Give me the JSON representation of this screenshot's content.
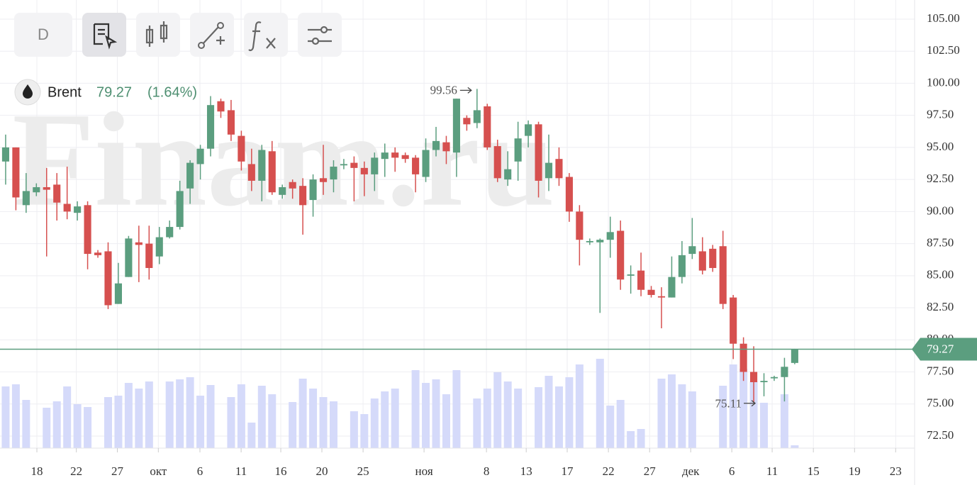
{
  "chart_data": {
    "type": "candlestick",
    "toolbar": {
      "timeframe": "D"
    },
    "instrument": "Brent",
    "last_price": 79.27,
    "change": "(1.64%)",
    "watermark": "Finam.ru",
    "max_label": 99.56,
    "min_label": 75.11,
    "up_color": "#5b9e7f",
    "down_color": "#d6504f",
    "volume_color": "#d5dafa",
    "open": [
      93.9,
      95.0,
      90.5,
      91.5,
      91.9,
      92.1,
      90.6,
      89.9,
      90.5,
      86.8,
      86.9,
      82.8,
      84.9,
      87.6,
      87.5,
      86.5,
      88.0,
      88.8,
      91.8,
      93.7,
      94.9,
      98.6,
      97.9,
      95.9,
      93.7,
      92.4,
      94.7,
      91.3,
      92.3,
      92.0,
      90.9,
      92.6,
      92.5,
      93.6,
      93.8,
      93.4,
      92.9,
      94.1,
      94.6,
      94.4,
      94.2,
      92.7,
      94.8,
      95.4,
      94.6,
      97.3,
      96.9,
      98.2,
      95.1,
      92.5,
      93.9,
      95.9,
      96.8,
      92.6,
      94.1,
      92.7,
      90.0,
      87.6,
      87.6,
      87.8,
      88.5,
      85.0,
      85.4,
      83.9,
      83.4,
      83.3,
      84.9,
      86.7,
      86.9,
      87.1,
      87.3,
      83.3,
      79.7,
      77.5,
      76.7,
      77.0,
      77.1,
      78.2
    ],
    "high": [
      96.0,
      95.0,
      93.0,
      92.2,
      93.4,
      93.0,
      93.5,
      90.8,
      90.8,
      87.0,
      87.6,
      86.0,
      88.1,
      88.9,
      88.9,
      88.8,
      89.3,
      92.4,
      94.0,
      95.2,
      99.0,
      98.8,
      98.7,
      96.3,
      94.9,
      95.2,
      95.5,
      92.1,
      92.5,
      92.6,
      92.9,
      95.2,
      94.0,
      94.1,
      94.3,
      93.9,
      94.6,
      95.3,
      95.0,
      94.6,
      94.4,
      95.7,
      96.6,
      95.9,
      98.8,
      97.5,
      99.56,
      98.4,
      95.6,
      94.7,
      97.0,
      97.1,
      97.0,
      96.0,
      95.0,
      93.0,
      90.5,
      87.9,
      87.9,
      89.6,
      89.3,
      85.8,
      86.8,
      84.2,
      84.1,
      86.5,
      87.7,
      89.5,
      88.0,
      87.4,
      88.5,
      83.5,
      80.2,
      79.5,
      77.4,
      77.2,
      78.6,
      79.3
    ],
    "low": [
      92.1,
      90.1,
      89.9,
      91.2,
      86.5,
      89.3,
      89.4,
      89.3,
      85.5,
      86.4,
      82.4,
      82.8,
      84.9,
      84.5,
      84.7,
      85.9,
      87.9,
      88.6,
      90.6,
      92.5,
      94.3,
      97.3,
      95.5,
      93.2,
      91.6,
      90.8,
      91.3,
      91.0,
      91.0,
      88.2,
      89.6,
      91.3,
      91.5,
      93.3,
      90.8,
      91.2,
      91.6,
      92.7,
      93.1,
      93.8,
      91.5,
      92.3,
      94.3,
      93.7,
      92.7,
      96.3,
      96.5,
      94.8,
      92.3,
      92.0,
      92.4,
      95.0,
      91.1,
      91.6,
      92.0,
      89.2,
      85.8,
      87.4,
      82.1,
      86.4,
      83.9,
      83.6,
      83.4,
      83.3,
      80.9,
      83.3,
      84.4,
      86.3,
      85.1,
      85.3,
      82.4,
      78.5,
      76.8,
      75.11,
      75.6,
      76.8,
      75.2,
      78.1
    ],
    "close": [
      95.0,
      91.1,
      91.6,
      91.9,
      91.7,
      90.7,
      90.0,
      90.4,
      86.7,
      86.6,
      82.7,
      84.4,
      87.9,
      87.4,
      85.6,
      88.0,
      88.8,
      91.6,
      93.8,
      94.9,
      98.3,
      97.8,
      96.0,
      93.9,
      92.4,
      94.8,
      91.5,
      91.9,
      91.8,
      90.5,
      92.5,
      92.3,
      93.5,
      93.7,
      93.4,
      92.9,
      94.2,
      94.6,
      94.2,
      94.1,
      92.9,
      94.8,
      95.5,
      94.7,
      98.8,
      96.8,
      97.9,
      95.0,
      92.6,
      93.3,
      95.7,
      96.8,
      92.4,
      93.8,
      92.6,
      90.0,
      87.8,
      87.7,
      87.8,
      88.4,
      84.7,
      85.1,
      83.9,
      83.5,
      83.3,
      84.9,
      86.6,
      87.3,
      85.4,
      85.6,
      82.8,
      79.7,
      77.5,
      76.7,
      76.8,
      77.1,
      77.9,
      79.27
    ],
    "volume": [
      87,
      90,
      68,
      0,
      57,
      66,
      87,
      62,
      58,
      0,
      72,
      74,
      92,
      84,
      94,
      0,
      94,
      97,
      100,
      74,
      89,
      0,
      72,
      90,
      36,
      88,
      76,
      0,
      65,
      98,
      84,
      72,
      66,
      0,
      52,
      48,
      70,
      80,
      84,
      0,
      110,
      92,
      97,
      76,
      110,
      0,
      70,
      84,
      107,
      94,
      84,
      0,
      86,
      102,
      87,
      100,
      118,
      0,
      126,
      60,
      68,
      24,
      27,
      0,
      98,
      104,
      90,
      80,
      0,
      0,
      88,
      118,
      112,
      94,
      64,
      0,
      76,
      4
    ],
    "xlim": [
      -0.55,
      88.7
    ],
    "xticks": [
      {
        "value": 3.05,
        "label": "18"
      },
      {
        "value": 6.9,
        "label": "22"
      },
      {
        "value": 10.9,
        "label": "27"
      },
      {
        "value": 14.9,
        "label": "окт"
      },
      {
        "value": 18.96,
        "label": "6"
      },
      {
        "value": 22.98,
        "label": "11"
      },
      {
        "value": 26.85,
        "label": "16"
      },
      {
        "value": 30.86,
        "label": "20"
      },
      {
        "value": 34.88,
        "label": "25"
      },
      {
        "value": 40.83,
        "label": "ноя"
      },
      {
        "value": 46.92,
        "label": "8"
      },
      {
        "value": 50.8,
        "label": "13"
      },
      {
        "value": 54.8,
        "label": "17"
      },
      {
        "value": 58.82,
        "label": "22"
      },
      {
        "value": 62.84,
        "label": "27"
      },
      {
        "value": 66.85,
        "label": "дек"
      },
      {
        "value": 70.86,
        "label": "6"
      },
      {
        "value": 74.8,
        "label": "11"
      },
      {
        "value": 78.82,
        "label": "15"
      },
      {
        "value": 82.84,
        "label": "19"
      },
      {
        "value": 86.85,
        "label": "23"
      }
    ],
    "ylim": [
      71.56,
      106.49
    ],
    "yticks": [
      {
        "value": 72.5,
        "label": "72.50"
      },
      {
        "value": 75,
        "label": "75.00"
      },
      {
        "value": 77.5,
        "label": "77.50"
      },
      {
        "value": 80,
        "label": "80.00"
      },
      {
        "value": 82.5,
        "label": "82.50"
      },
      {
        "value": 85,
        "label": "85.00"
      },
      {
        "value": 87.5,
        "label": "87.50"
      },
      {
        "value": 90,
        "label": "90.00"
      },
      {
        "value": 92.5,
        "label": "92.50"
      },
      {
        "value": 95,
        "label": "95.00"
      },
      {
        "value": 97.5,
        "label": "97.50"
      },
      {
        "value": 100,
        "label": "100.00"
      },
      {
        "value": 102.5,
        "label": "102.50"
      },
      {
        "value": 105,
        "label": "105.00"
      }
    ],
    "grid": true
  }
}
